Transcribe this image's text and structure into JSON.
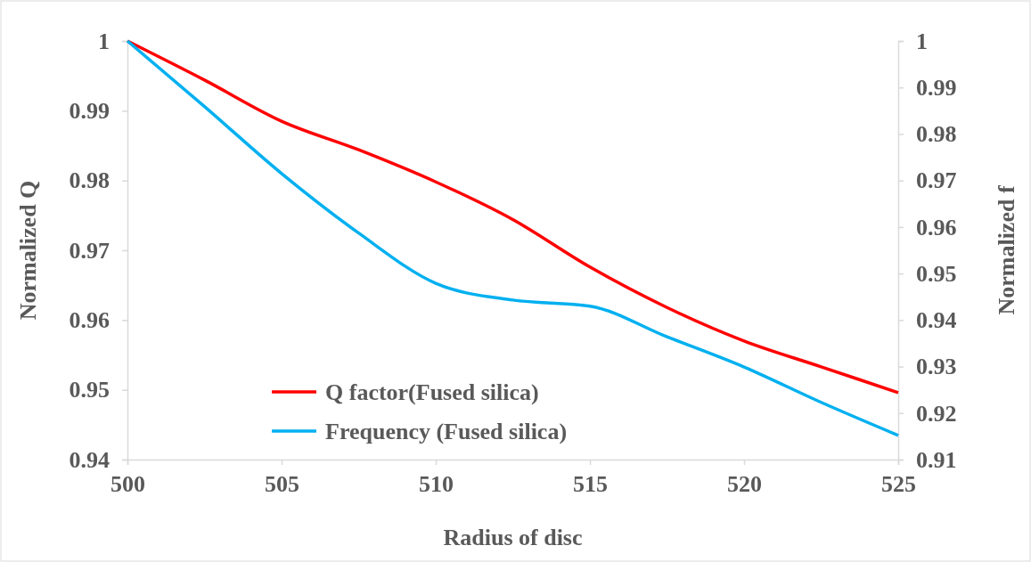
{
  "chart_data": {
    "type": "line",
    "xlabel": "Radius of disc",
    "ylabel": "Normalized Q",
    "y2label": "Normalized f",
    "x": [
      500,
      502.5,
      505,
      507.5,
      510,
      512.5,
      515,
      517.5,
      520,
      522.5,
      525
    ],
    "xlim": [
      500,
      525
    ],
    "xticks": [
      500,
      505,
      510,
      515,
      520,
      525
    ],
    "ylim": [
      0.94,
      1
    ],
    "yticks": [
      0.94,
      0.95,
      0.96,
      0.97,
      0.98,
      0.99,
      1
    ],
    "y2lim": [
      0.91,
      1
    ],
    "y2ticks": [
      0.91,
      0.92,
      0.93,
      0.94,
      0.95,
      0.96,
      0.97,
      0.98,
      0.99,
      1
    ],
    "legend": "bottom",
    "grid": false,
    "marker": "none",
    "line_style": "solid",
    "series": [
      {
        "name": "Q factor(Fused silica)",
        "color": "#ff0000",
        "values": [
          1.0,
          0.9944,
          0.9885,
          0.9844,
          0.9798,
          0.9744,
          0.9676,
          0.9618,
          0.957,
          0.9533,
          0.9496
        ]
      },
      {
        "name": "Frequency (Fused silica)",
        "color": "#00b0f0",
        "axis": "y2",
        "values": [
          1.0,
          0.9859,
          0.9715,
          0.9587,
          0.9479,
          0.9443,
          0.943,
          0.9364,
          0.9299,
          0.9223,
          0.9152
        ]
      }
    ]
  }
}
